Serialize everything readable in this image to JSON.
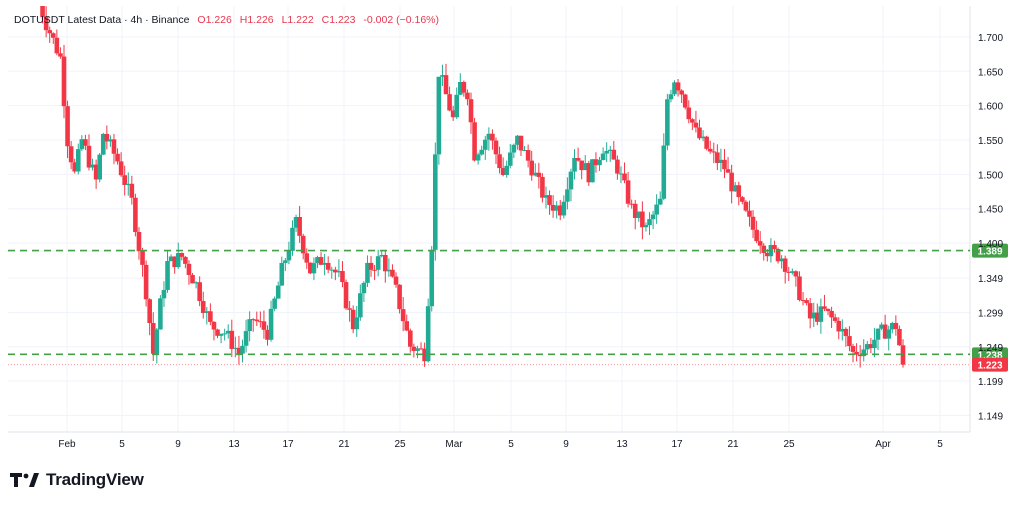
{
  "legend": {
    "symbol": "DOTUSDT Latest Data · 4h · Binance",
    "open_label": "O",
    "open": "1.226",
    "high_label": "H",
    "high": "1.226",
    "low_label": "L",
    "low": "1.222",
    "close_label": "C",
    "close": "1.223",
    "change": "-0.002 (−0.16%)"
  },
  "brand": {
    "name": "TradingView",
    "icon": "tradingview-logo-icon"
  },
  "colors": {
    "up": "#22ab94",
    "down": "#f23645",
    "level": "#43a047",
    "last": "#f23645"
  },
  "chart_data": {
    "type": "candlestick",
    "title": "DOTUSDT Latest Data · 4h · Binance",
    "xlabel": "",
    "ylabel": "",
    "ylim": [
      1.12,
      1.75
    ],
    "y_ticks": [
      "1.700",
      "1.650",
      "1.600",
      "1.550",
      "1.500",
      "1.450",
      "1.400",
      "1.349",
      "1.299",
      "1.249",
      "1.199",
      "1.149"
    ],
    "x_ticks": [
      "Feb",
      "5",
      "9",
      "13",
      "17",
      "21",
      "25",
      "Mar",
      "5",
      "9",
      "13",
      "17",
      "21",
      "25",
      "Apr",
      "5"
    ],
    "horizontal_levels": [
      {
        "value": 1.389,
        "label": "1.389",
        "style": "dashed"
      },
      {
        "value": 1.238,
        "label": "1.238",
        "style": "dashed"
      }
    ],
    "last_price": {
      "value": 1.223,
      "label": "1.223"
    },
    "path": [
      [
        0,
        1.75
      ],
      [
        2,
        1.72
      ],
      [
        6,
        1.67
      ],
      [
        8,
        1.55
      ],
      [
        10,
        1.5
      ],
      [
        12,
        1.55
      ],
      [
        16,
        1.49
      ],
      [
        18,
        1.56
      ],
      [
        22,
        1.52
      ],
      [
        26,
        1.46
      ],
      [
        30,
        1.33
      ],
      [
        32,
        1.24
      ],
      [
        34,
        1.31
      ],
      [
        36,
        1.37
      ],
      [
        40,
        1.38
      ],
      [
        44,
        1.34
      ],
      [
        48,
        1.28
      ],
      [
        52,
        1.27
      ],
      [
        56,
        1.24
      ],
      [
        60,
        1.29
      ],
      [
        64,
        1.27
      ],
      [
        68,
        1.36
      ],
      [
        72,
        1.43
      ],
      [
        76,
        1.36
      ],
      [
        80,
        1.38
      ],
      [
        84,
        1.35
      ],
      [
        88,
        1.28
      ],
      [
        92,
        1.36
      ],
      [
        96,
        1.38
      ],
      [
        100,
        1.33
      ],
      [
        104,
        1.25
      ],
      [
        108,
        1.24
      ],
      [
        110,
        1.4
      ],
      [
        112,
        1.65
      ],
      [
        116,
        1.58
      ],
      [
        118,
        1.63
      ],
      [
        120,
        1.62
      ],
      [
        122,
        1.53
      ],
      [
        126,
        1.56
      ],
      [
        130,
        1.5
      ],
      [
        134,
        1.55
      ],
      [
        138,
        1.51
      ],
      [
        142,
        1.46
      ],
      [
        146,
        1.45
      ],
      [
        150,
        1.53
      ],
      [
        154,
        1.5
      ],
      [
        158,
        1.54
      ],
      [
        162,
        1.51
      ],
      [
        166,
        1.45
      ],
      [
        170,
        1.42
      ],
      [
        174,
        1.46
      ],
      [
        176,
        1.61
      ],
      [
        178,
        1.64
      ],
      [
        180,
        1.62
      ],
      [
        184,
        1.56
      ],
      [
        188,
        1.53
      ],
      [
        192,
        1.51
      ],
      [
        196,
        1.46
      ],
      [
        200,
        1.42
      ],
      [
        204,
        1.39
      ],
      [
        208,
        1.38
      ],
      [
        212,
        1.34
      ],
      [
        216,
        1.29
      ],
      [
        220,
        1.3
      ],
      [
        224,
        1.28
      ],
      [
        228,
        1.24
      ],
      [
        232,
        1.25
      ],
      [
        236,
        1.27
      ],
      [
        240,
        1.28
      ],
      [
        242,
        1.223
      ]
    ]
  }
}
